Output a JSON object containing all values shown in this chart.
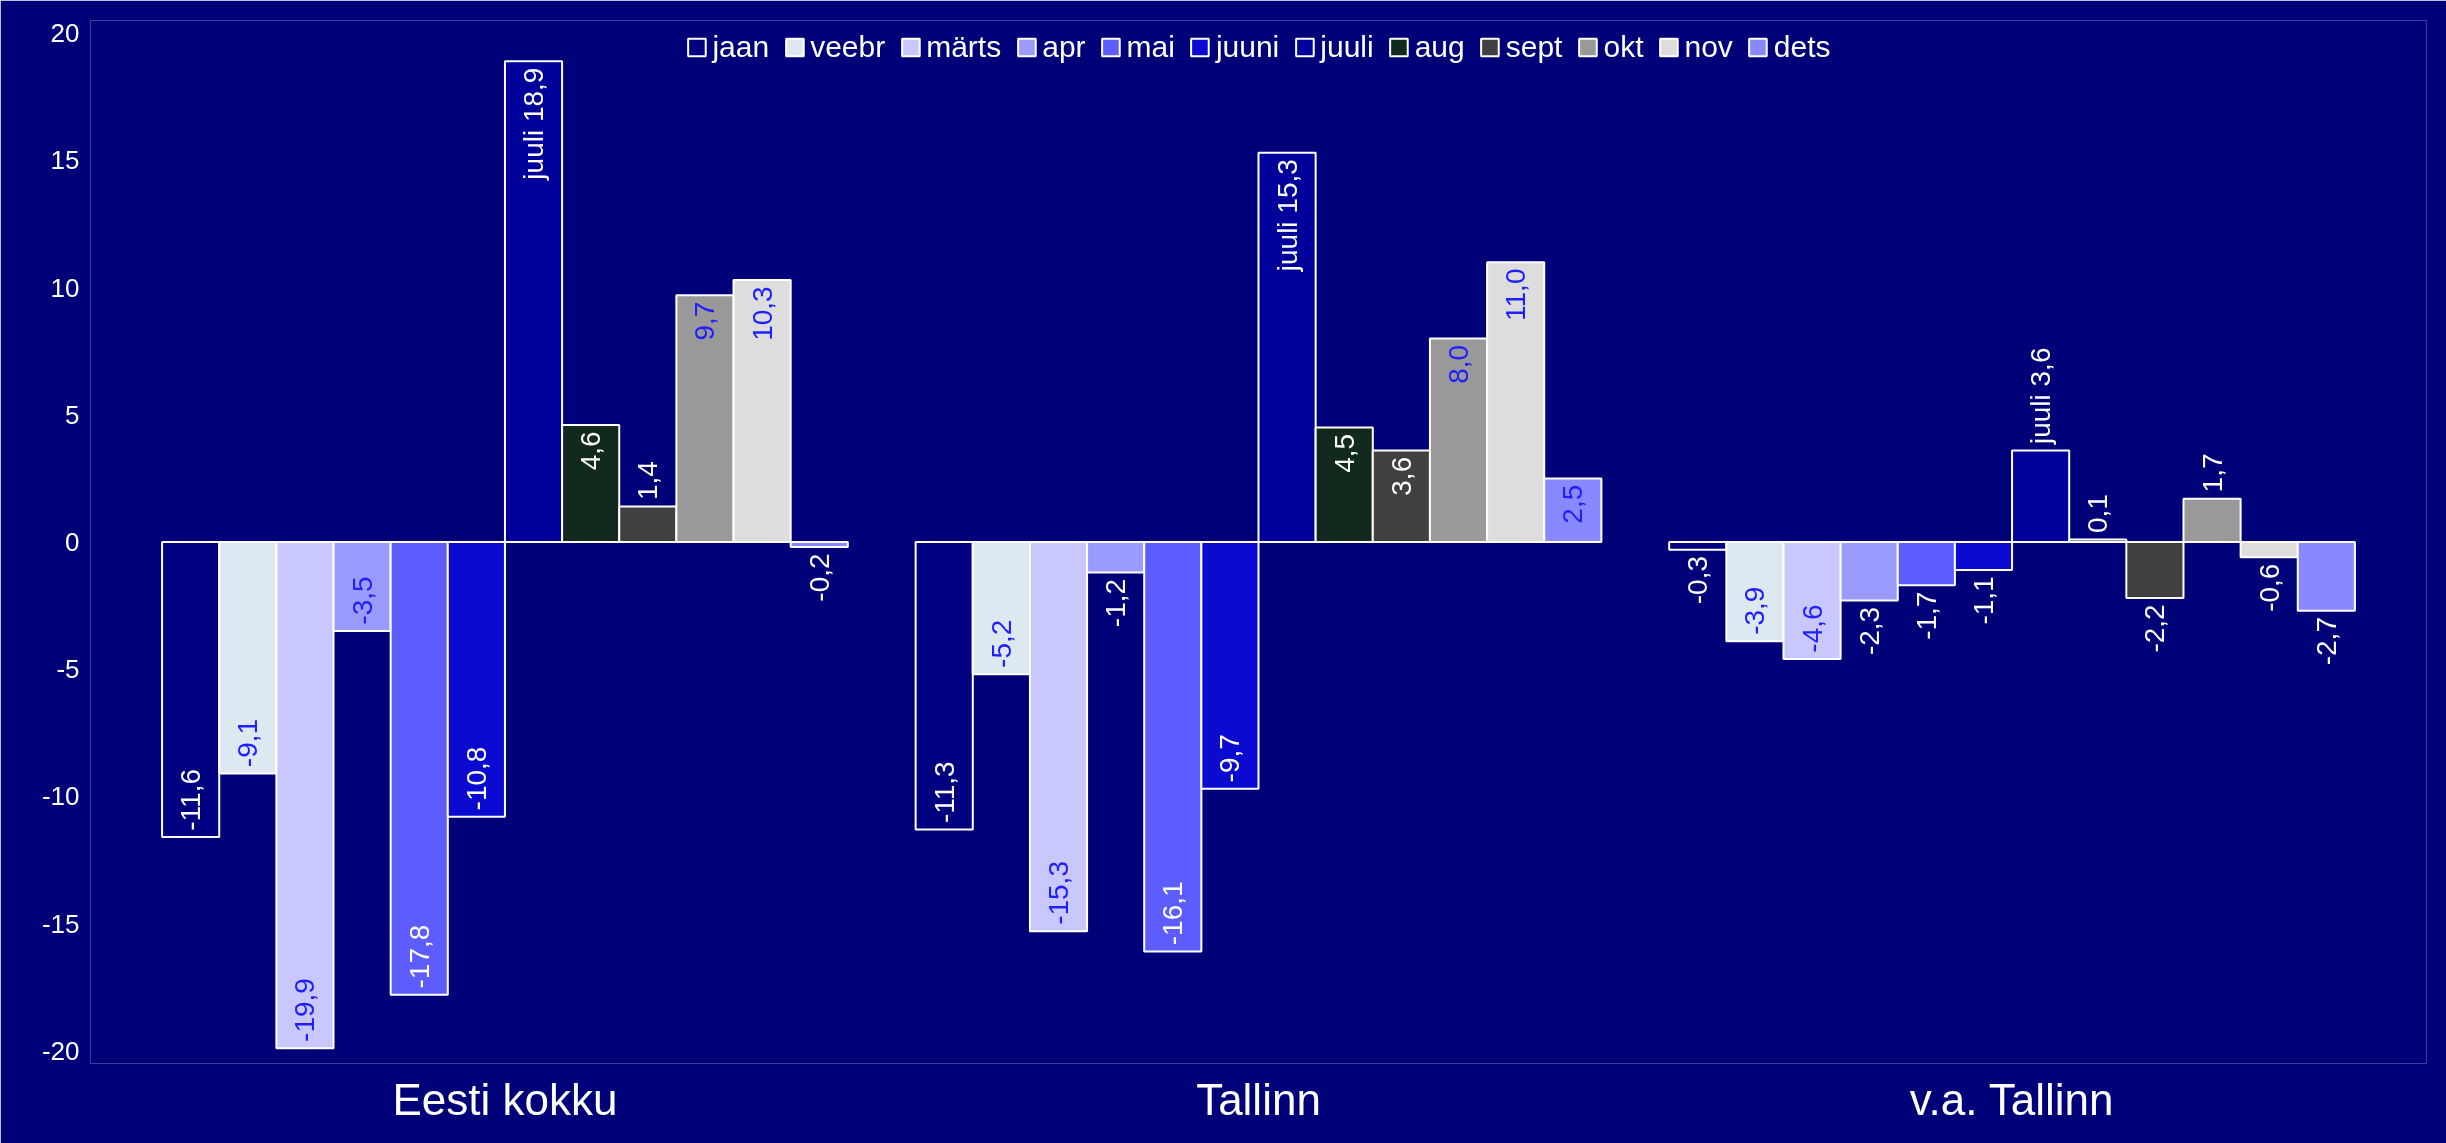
{
  "chart_data": {
    "type": "bar",
    "categories": [
      "Eesti kokku",
      "Tallinn",
      "v.a. Tallinn"
    ],
    "ylim": [
      -20.5,
      20.5
    ],
    "yticks": [
      -20,
      -15,
      -10,
      -5,
      0,
      5,
      10,
      15,
      20
    ],
    "grid": false,
    "legend": "top",
    "series": [
      {
        "name": "jaan",
        "color": "#000080",
        "values": [
          -11.6,
          -11.3,
          -0.3
        ],
        "value_labels": [
          "-11,6",
          "-11,3",
          "-0,3"
        ]
      },
      {
        "name": "veebr",
        "color": "#dde8f0",
        "values": [
          -9.1,
          -5.2,
          -3.9
        ],
        "value_labels": [
          "-9,1",
          "-5,2",
          "-3,9"
        ]
      },
      {
        "name": "märts",
        "color": "#c8c8ff",
        "values": [
          -19.9,
          -15.3,
          -4.6
        ],
        "value_labels": [
          "-19,9",
          "-15,3",
          "-4,6"
        ]
      },
      {
        "name": "apr",
        "color": "#9a9aff",
        "values": [
          -3.5,
          -1.2,
          -2.3
        ],
        "value_labels": [
          "-3,5",
          "-1,2",
          "-2,3"
        ]
      },
      {
        "name": "mai",
        "color": "#5c5cff",
        "values": [
          -17.8,
          -16.1,
          -1.7
        ],
        "value_labels": [
          "-17,8",
          "-16,1",
          "-1,7"
        ]
      },
      {
        "name": "juuni",
        "color": "#0a0ad0",
        "values": [
          -10.8,
          -9.7,
          -1.1
        ],
        "value_labels": [
          "-10,8",
          "-9,7",
          "-1,1"
        ]
      },
      {
        "name": "juuli",
        "color": "#00009a",
        "values": [
          18.9,
          15.3,
          3.6
        ],
        "value_labels": [
          "juuli 18,9",
          "juuli 15,3",
          "juuli 3,6"
        ]
      },
      {
        "name": "aug",
        "color": "#122a1e",
        "values": [
          4.6,
          4.5,
          0.1
        ],
        "value_labels": [
          "4,6",
          "4,5",
          "0,1"
        ]
      },
      {
        "name": "sept",
        "color": "#404040",
        "values": [
          1.4,
          3.6,
          -2.2
        ],
        "value_labels": [
          "1,4",
          "3,6",
          "-2,2"
        ]
      },
      {
        "name": "okt",
        "color": "#999999",
        "values": [
          9.7,
          8.0,
          1.7
        ],
        "value_labels": [
          "9,7",
          "8,0",
          "1,7"
        ]
      },
      {
        "name": "nov",
        "color": "#dddddd",
        "values": [
          10.3,
          11.0,
          -0.6
        ],
        "value_labels": [
          "10,3",
          "11,0",
          "-0,6"
        ]
      },
      {
        "name": "dets",
        "color": "#8888ff",
        "values": [
          -0.2,
          2.5,
          -2.7
        ],
        "value_labels": [
          "-0,2",
          "2,5",
          "-2,7"
        ]
      }
    ]
  }
}
